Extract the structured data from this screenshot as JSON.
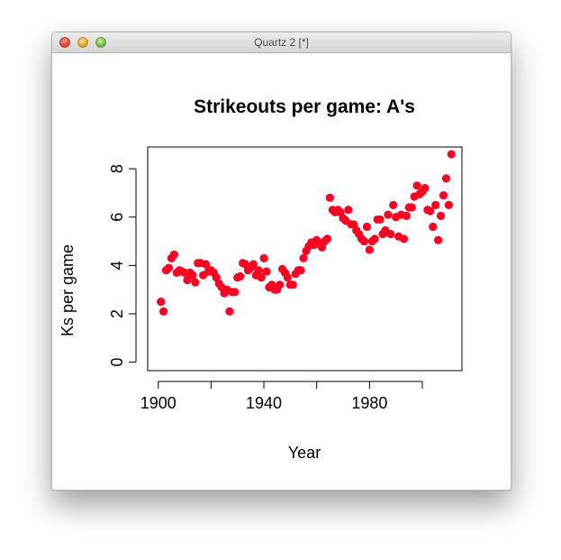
{
  "window": {
    "title": "Quartz 2 [*]"
  },
  "chart_data": {
    "type": "scatter",
    "title": "Strikeouts per game: A's",
    "xlabel": "Year",
    "ylabel": "Ks per game",
    "xlim": [
      1896,
      2015
    ],
    "ylim": [
      -0.35,
      8.9
    ],
    "xticks": [
      1900,
      1920,
      1940,
      1960,
      1980,
      2000
    ],
    "xtick_labels": [
      "1900",
      "",
      "1940",
      "",
      "1980",
      ""
    ],
    "yticks": [
      0,
      2,
      4,
      6,
      8
    ],
    "ytick_labels": [
      "0",
      "2",
      "4",
      "6",
      "8"
    ],
    "grid": false,
    "point_color": "#ff0022",
    "x": [
      1901,
      1902,
      1903,
      1904,
      1905,
      1906,
      1907,
      1908,
      1909,
      1910,
      1911,
      1912,
      1913,
      1914,
      1915,
      1916,
      1917,
      1918,
      1919,
      1920,
      1921,
      1922,
      1923,
      1924,
      1925,
      1926,
      1927,
      1928,
      1929,
      1930,
      1931,
      1932,
      1933,
      1934,
      1935,
      1936,
      1937,
      1938,
      1939,
      1940,
      1941,
      1942,
      1943,
      1944,
      1945,
      1946,
      1947,
      1948,
      1949,
      1950,
      1951,
      1952,
      1953,
      1954,
      1955,
      1956,
      1957,
      1958,
      1959,
      1960,
      1961,
      1962,
      1963,
      1964,
      1965,
      1966,
      1967,
      1968,
      1969,
      1970,
      1971,
      1972,
      1973,
      1974,
      1975,
      1976,
      1977,
      1978,
      1979,
      1980,
      1981,
      1982,
      1983,
      1984,
      1985,
      1986,
      1987,
      1988,
      1989,
      1990,
      1991,
      1992,
      1993,
      1994,
      1995,
      1996,
      1997,
      1998,
      1999,
      2000,
      2001,
      2002,
      2003,
      2004,
      2005,
      2006,
      2007,
      2008,
      2009,
      2010,
      2011
    ],
    "y": [
      2.5,
      2.1,
      3.8,
      3.9,
      4.3,
      4.45,
      3.7,
      3.8,
      3.75,
      3.7,
      3.4,
      3.7,
      3.6,
      3.3,
      4.1,
      4.1,
      3.6,
      4.05,
      3.75,
      3.8,
      3.7,
      3.5,
      3.25,
      3.1,
      2.85,
      3.0,
      2.1,
      2.9,
      2.9,
      3.5,
      3.55,
      4.1,
      4.05,
      3.8,
      3.9,
      4.05,
      3.6,
      3.8,
      3.5,
      4.3,
      3.75,
      3.1,
      3.2,
      3.0,
      3.0,
      3.2,
      3.85,
      3.7,
      3.5,
      3.2,
      3.2,
      3.65,
      3.8,
      3.8,
      4.3,
      4.6,
      4.8,
      4.95,
      4.85,
      5.05,
      4.9,
      4.75,
      5.0,
      5.1,
      6.8,
      6.3,
      6.2,
      6.3,
      6.2,
      5.95,
      5.85,
      6.3,
      5.7,
      5.7,
      5.45,
      5.3,
      5.1,
      5.0,
      5.6,
      4.65,
      5.0,
      5.1,
      5.9,
      5.9,
      5.3,
      5.45,
      6.1,
      5.3,
      6.5,
      6.0,
      5.2,
      6.1,
      5.1,
      6.05,
      6.4,
      6.4,
      6.85,
      7.3,
      6.95,
      7.05,
      7.2,
      6.3,
      6.25,
      5.6,
      6.5,
      5.05,
      6.05,
      6.9,
      7.6,
      6.5,
      8.6
    ]
  }
}
